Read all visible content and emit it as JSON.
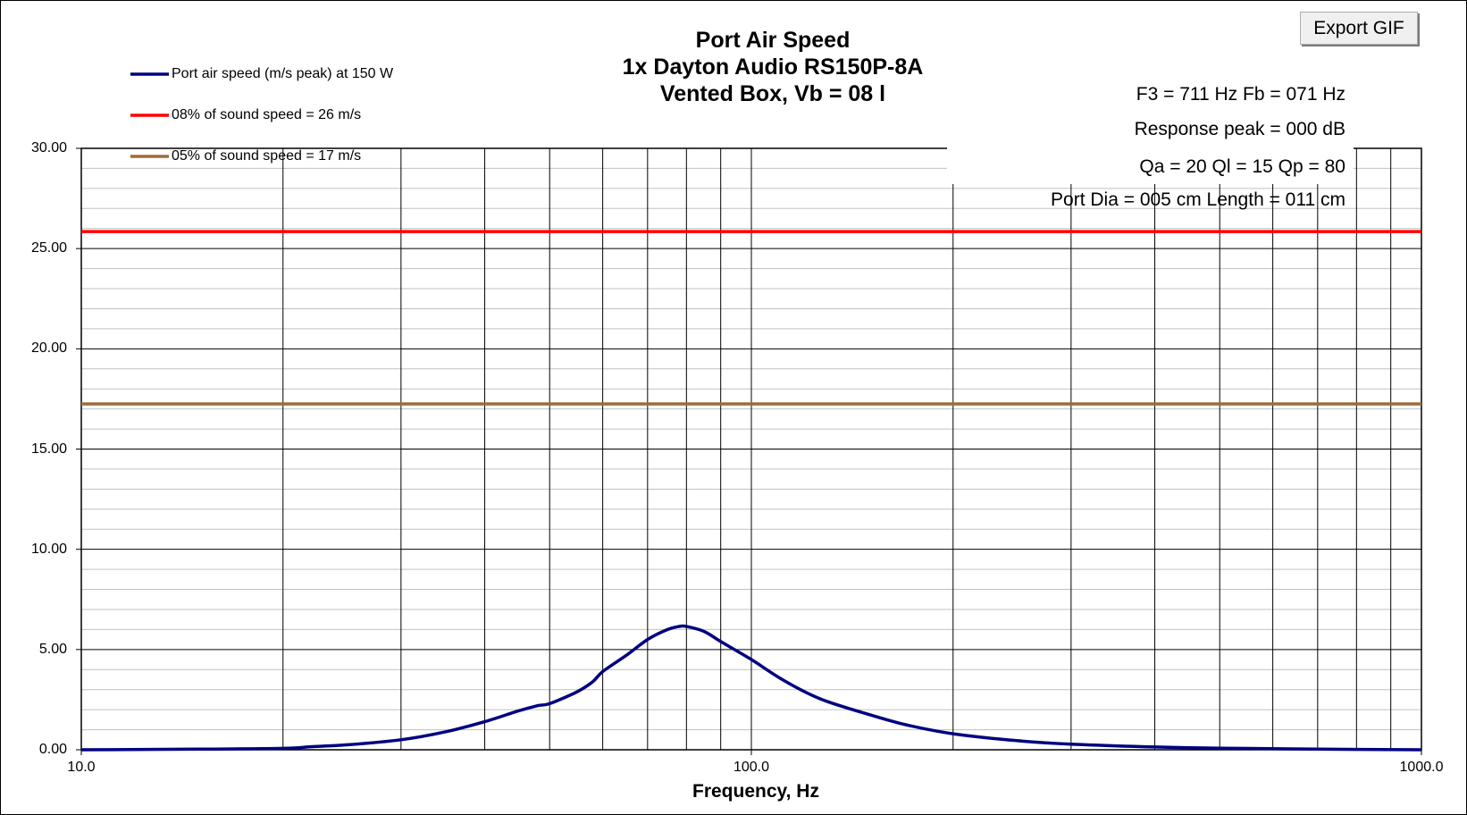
{
  "window": {
    "export_button": "Export GIF"
  },
  "chart_data": {
    "type": "line",
    "title": [
      "Port Air Speed",
      "1x Dayton Audio RS150P-8A",
      "Vented Box, Vb = 08 l"
    ],
    "xlabel": "Frequency, Hz",
    "ylabel": "",
    "x_scale": "log",
    "xlim": [
      10,
      1000
    ],
    "ylim": [
      0,
      30
    ],
    "x_tick_labels": [
      "10.0",
      "100.0",
      "1000.0"
    ],
    "y_tick_labels": [
      "0.00",
      "5.00",
      "10.00",
      "15.00",
      "20.00",
      "25.00",
      "30.00"
    ],
    "grid": true,
    "legend_position": "top-left",
    "annotations": [
      "F3 = 711 Hz  Fb = 071 Hz",
      "Response peak = 000 dB",
      "Qa = 20  Ql = 15  Qp = 80",
      "Port Dia = 005 cm  Length = 011 cm"
    ],
    "series": [
      {
        "name": "Port air speed (m/s peak) at 150 W",
        "color": "#000080",
        "x": [
          10,
          15,
          20,
          22,
          25,
          30,
          35,
          40,
          45,
          48,
          50,
          55,
          58,
          60,
          65,
          70,
          75,
          78,
          80,
          85,
          90,
          100,
          110,
          120,
          130,
          150,
          170,
          200,
          250,
          300,
          400,
          500,
          700,
          1000
        ],
        "y": [
          0.0,
          0.03,
          0.07,
          0.15,
          0.25,
          0.5,
          0.9,
          1.4,
          1.95,
          2.2,
          2.3,
          2.9,
          3.4,
          3.9,
          4.7,
          5.5,
          6.0,
          6.15,
          6.15,
          5.9,
          5.4,
          4.5,
          3.6,
          2.9,
          2.4,
          1.75,
          1.25,
          0.8,
          0.45,
          0.28,
          0.14,
          0.08,
          0.03,
          0.0
        ]
      },
      {
        "name": "08% of sound speed = 26 m/s",
        "color": "#ff0000",
        "x": [
          10,
          1000
        ],
        "y": [
          25.85,
          25.85
        ]
      },
      {
        "name": "05% of sound speed = 17 m/s",
        "color": "#9e6b3a",
        "x": [
          10,
          1000
        ],
        "y": [
          17.25,
          17.25
        ]
      }
    ]
  }
}
